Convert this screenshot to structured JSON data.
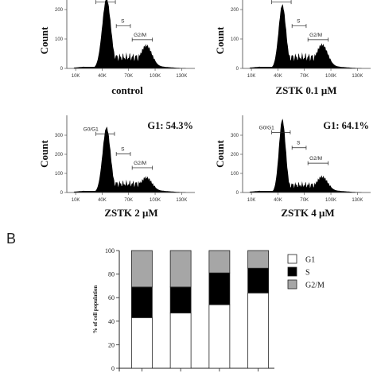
{
  "panel_b_letter": "B",
  "histograms": [
    {
      "id": "control",
      "label": "control",
      "ylabel": "Count",
      "y_tick_labels": [
        "0",
        "100",
        "200"
      ],
      "g1_text": "",
      "gates": {
        "g0g1": "",
        "s": "S",
        "g2m": "G2/M"
      },
      "x_tick_labels": [
        "10K",
        "40K",
        "70K",
        "100K",
        "130K"
      ]
    },
    {
      "id": "zstk-0.1",
      "label": "ZSTK  0.1 μM",
      "ylabel": "Count",
      "y_tick_labels": [
        "0",
        "100",
        "200"
      ],
      "g1_text": "",
      "gates": {
        "g0g1": "",
        "s": "S",
        "g2m": "G2/M"
      },
      "x_tick_labels": [
        "10K",
        "40K",
        "70K",
        "100K",
        "130K"
      ]
    },
    {
      "id": "zstk-2",
      "label": "ZSTK  2 μM",
      "ylabel": "Count",
      "y_tick_labels": [
        "0",
        "100",
        "200",
        "300"
      ],
      "g1_text": "G1: 54.3%",
      "gates": {
        "g0g1": "G0/G1",
        "s": "S",
        "g2m": "G2/M"
      },
      "x_tick_labels": [
        "10K",
        "40K",
        "70K",
        "100K",
        "130K"
      ]
    },
    {
      "id": "zstk-4",
      "label": "ZSTK  4 μM",
      "ylabel": "Count",
      "y_tick_labels": [
        "0",
        "100",
        "200",
        "300"
      ],
      "g1_text": "G1: 64.1%",
      "gates": {
        "g0g1": "G0/G1",
        "s": "S",
        "g2m": "G2/M"
      },
      "x_tick_labels": [
        "10K",
        "40K",
        "70K",
        "100K",
        "130K"
      ]
    }
  ],
  "chart_data": {
    "type": "bar",
    "stacked": true,
    "title": "",
    "xlabel": "",
    "ylabel": "% of cell population",
    "ylim": [
      0,
      100
    ],
    "y_ticks": [
      "0",
      "20",
      "40",
      "60",
      "80",
      "100"
    ],
    "categories": [
      "",
      "",
      "",
      ""
    ],
    "series": [
      {
        "name": "G1",
        "values": [
          43,
          47,
          54,
          64
        ],
        "color": "#ffffff"
      },
      {
        "name": "S",
        "values": [
          26,
          22,
          27,
          21
        ],
        "color": "#000000"
      },
      {
        "name": "G2/M",
        "values": [
          31,
          31,
          19,
          15
        ],
        "color": "#a6a6a6"
      }
    ],
    "legend_position": "right",
    "grid": false
  }
}
